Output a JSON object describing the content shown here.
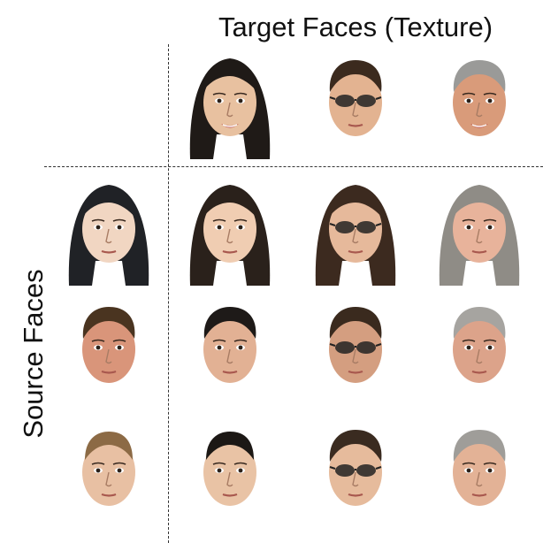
{
  "header": {
    "target_title": "Target Faces (Texture)",
    "source_title": "Source Faces"
  },
  "target_faces": [
    {
      "name": "target-face-1",
      "skin": "#e8c1a0",
      "hair": "#1f1a17",
      "hair_style": "long",
      "glasses": false,
      "smile": true
    },
    {
      "name": "target-face-2",
      "skin": "#e3b391",
      "hair": "#3b2a1e",
      "hair_style": "short",
      "glasses": true,
      "smile": false
    },
    {
      "name": "target-face-3",
      "skin": "#d99b7a",
      "hair": "#9a9a98",
      "hair_style": "short",
      "glasses": false,
      "smile": true
    }
  ],
  "source_faces": [
    {
      "name": "source-face-1",
      "skin": "#f1d6c2",
      "hair": "#202226",
      "hair_style": "long",
      "glasses": false,
      "smile": false
    },
    {
      "name": "source-face-2",
      "skin": "#d9957a",
      "hair": "#4a3420",
      "hair_style": "short",
      "glasses": false,
      "smile": false
    },
    {
      "name": "source-face-3",
      "skin": "#e8c0a3",
      "hair": "#8c6a45",
      "hair_style": "bun",
      "glasses": false,
      "smile": false
    }
  ],
  "swap_grid": [
    [
      {
        "name": "swap-face-1-1",
        "skin": "#f0cdb2",
        "hair": "#2a211b",
        "hair_style": "long",
        "glasses": false,
        "smile": false
      },
      {
        "name": "swap-face-1-2",
        "skin": "#e6b99b",
        "hair": "#3c2a1f",
        "hair_style": "long",
        "glasses": true,
        "smile": false
      },
      {
        "name": "swap-face-1-3",
        "skin": "#e8b39b",
        "hair": "#8f8c86",
        "hair_style": "long",
        "glasses": false,
        "smile": false
      }
    ],
    [
      {
        "name": "swap-face-2-1",
        "skin": "#e2b194",
        "hair": "#1e1a18",
        "hair_style": "short",
        "glasses": false,
        "smile": false
      },
      {
        "name": "swap-face-2-2",
        "skin": "#d49e80",
        "hair": "#3a2a1e",
        "hair_style": "short",
        "glasses": true,
        "smile": false
      },
      {
        "name": "swap-face-2-3",
        "skin": "#dca38a",
        "hair": "#a6a4a0",
        "hair_style": "short",
        "glasses": false,
        "smile": false
      }
    ],
    [
      {
        "name": "swap-face-3-1",
        "skin": "#e9c3a5",
        "hair": "#1c1815",
        "hair_style": "bun",
        "glasses": false,
        "smile": false
      },
      {
        "name": "swap-face-3-2",
        "skin": "#e6bb9c",
        "hair": "#3a2b20",
        "hair_style": "short",
        "glasses": true,
        "smile": false
      },
      {
        "name": "swap-face-3-3",
        "skin": "#e3b296",
        "hair": "#9f9d99",
        "hair_style": "short",
        "glasses": false,
        "smile": false
      }
    ]
  ]
}
